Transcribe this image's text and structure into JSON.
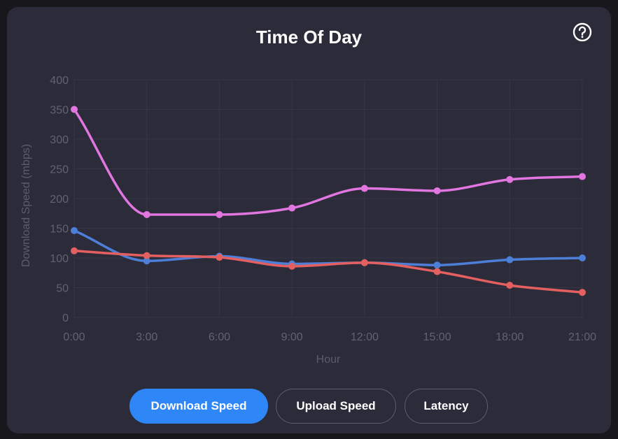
{
  "title": "Time Of Day",
  "help_icon": "question-circle-icon",
  "tabs": [
    {
      "label": "Download Speed",
      "active": true
    },
    {
      "label": "Upload Speed",
      "active": false
    },
    {
      "label": "Latency",
      "active": false
    }
  ],
  "colors": {
    "card": "#2b2b3a",
    "accent": "#2f86f6",
    "grid": "#363645",
    "tick": "#62636f"
  },
  "chart_data": {
    "type": "line",
    "xlabel": "Hour",
    "ylabel": "Download Speed (mbps)",
    "categories": [
      "0:00",
      "3:00",
      "6:00",
      "9:00",
      "12:00",
      "15:00",
      "18:00",
      "21:00"
    ],
    "ylim": [
      0,
      400
    ],
    "yticks": [
      0,
      50,
      100,
      150,
      200,
      250,
      300,
      350,
      400
    ],
    "grid": true,
    "legend": false,
    "series": [
      {
        "color": "#e276e0",
        "values": [
          350,
          173,
          173,
          184,
          217,
          213,
          232,
          237
        ]
      },
      {
        "color": "#4d7fd9",
        "values": [
          146,
          95,
          103,
          90,
          92,
          88,
          97,
          100
        ]
      },
      {
        "color": "#e45f60",
        "values": [
          112,
          104,
          101,
          86,
          92,
          77,
          54,
          42
        ]
      }
    ]
  }
}
